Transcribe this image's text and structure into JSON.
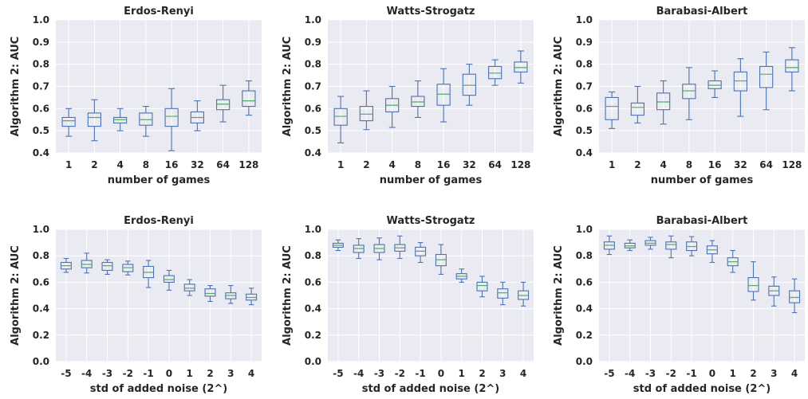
{
  "colors": {
    "plot_background": "#EAEAF2",
    "grid": "#FFFFFF",
    "box": "#4C72B0",
    "median": "#55A868",
    "text": "#262626"
  },
  "chart_data": [
    {
      "type": "box",
      "title": "Erdos-Renyi",
      "xlabel": "number of games",
      "ylabel": "Algorithm 2: AUC",
      "ylim": [
        0.4,
        1.0
      ],
      "yticks": [
        "0.4",
        "0.5",
        "0.6",
        "0.7",
        "0.8",
        "0.9",
        "1.0"
      ],
      "categories": [
        "1",
        "2",
        "4",
        "8",
        "16",
        "32",
        "64",
        "128"
      ],
      "boxes": [
        {
          "whislo": 0.475,
          "q1": 0.52,
          "med": 0.545,
          "q3": 0.56,
          "whishi": 0.6
        },
        {
          "whislo": 0.455,
          "q1": 0.52,
          "med": 0.56,
          "q3": 0.58,
          "whishi": 0.64
        },
        {
          "whislo": 0.5,
          "q1": 0.535,
          "med": 0.55,
          "q3": 0.56,
          "whishi": 0.6
        },
        {
          "whislo": 0.475,
          "q1": 0.525,
          "med": 0.55,
          "q3": 0.58,
          "whishi": 0.61
        },
        {
          "whislo": 0.41,
          "q1": 0.52,
          "med": 0.565,
          "q3": 0.6,
          "whishi": 0.69
        },
        {
          "whislo": 0.5,
          "q1": 0.535,
          "med": 0.56,
          "q3": 0.585,
          "whishi": 0.635
        },
        {
          "whislo": 0.54,
          "q1": 0.595,
          "med": 0.62,
          "q3": 0.64,
          "whishi": 0.705
        },
        {
          "whislo": 0.57,
          "q1": 0.61,
          "med": 0.635,
          "q3": 0.68,
          "whishi": 0.725
        }
      ]
    },
    {
      "type": "box",
      "title": "Watts-Strogatz",
      "xlabel": "number of games",
      "ylabel": "Algorithm 2: AUC",
      "ylim": [
        0.4,
        1.0
      ],
      "yticks": [
        "0.4",
        "0.5",
        "0.6",
        "0.7",
        "0.8",
        "0.9",
        "1.0"
      ],
      "categories": [
        "1",
        "2",
        "4",
        "8",
        "16",
        "32",
        "64",
        "128"
      ],
      "boxes": [
        {
          "whislo": 0.445,
          "q1": 0.525,
          "med": 0.565,
          "q3": 0.6,
          "whishi": 0.655
        },
        {
          "whislo": 0.505,
          "q1": 0.545,
          "med": 0.575,
          "q3": 0.61,
          "whishi": 0.68
        },
        {
          "whislo": 0.515,
          "q1": 0.585,
          "med": 0.615,
          "q3": 0.645,
          "whishi": 0.7
        },
        {
          "whislo": 0.56,
          "q1": 0.61,
          "med": 0.63,
          "q3": 0.655,
          "whishi": 0.725
        },
        {
          "whislo": 0.54,
          "q1": 0.615,
          "med": 0.665,
          "q3": 0.71,
          "whishi": 0.78
        },
        {
          "whislo": 0.615,
          "q1": 0.66,
          "med": 0.705,
          "q3": 0.755,
          "whishi": 0.8
        },
        {
          "whislo": 0.705,
          "q1": 0.735,
          "med": 0.76,
          "q3": 0.79,
          "whishi": 0.82
        },
        {
          "whislo": 0.715,
          "q1": 0.765,
          "med": 0.785,
          "q3": 0.81,
          "whishi": 0.86
        }
      ]
    },
    {
      "type": "box",
      "title": "Barabasi-Albert",
      "xlabel": "number of games",
      "ylabel": "Algorithm 2: AUC",
      "ylim": [
        0.4,
        1.0
      ],
      "yticks": [
        "0.4",
        "0.5",
        "0.6",
        "0.7",
        "0.8",
        "0.9",
        "1.0"
      ],
      "categories": [
        "1",
        "2",
        "4",
        "8",
        "16",
        "32",
        "64",
        "128"
      ],
      "boxes": [
        {
          "whislo": 0.51,
          "q1": 0.55,
          "med": 0.61,
          "q3": 0.65,
          "whishi": 0.675
        },
        {
          "whislo": 0.535,
          "q1": 0.57,
          "med": 0.605,
          "q3": 0.625,
          "whishi": 0.7
        },
        {
          "whislo": 0.53,
          "q1": 0.595,
          "med": 0.63,
          "q3": 0.67,
          "whishi": 0.725
        },
        {
          "whislo": 0.55,
          "q1": 0.645,
          "med": 0.68,
          "q3": 0.71,
          "whishi": 0.785
        },
        {
          "whislo": 0.65,
          "q1": 0.69,
          "med": 0.705,
          "q3": 0.725,
          "whishi": 0.77
        },
        {
          "whislo": 0.565,
          "q1": 0.68,
          "med": 0.725,
          "q3": 0.765,
          "whishi": 0.825
        },
        {
          "whislo": 0.595,
          "q1": 0.695,
          "med": 0.755,
          "q3": 0.79,
          "whishi": 0.855
        },
        {
          "whislo": 0.68,
          "q1": 0.765,
          "med": 0.785,
          "q3": 0.82,
          "whishi": 0.875
        }
      ]
    },
    {
      "type": "box",
      "title": "Erdos-Renyi",
      "xlabel": "std of added noise (2^)",
      "ylabel": "Algorithm 2: AUC",
      "ylim": [
        0.0,
        1.0
      ],
      "yticks": [
        "0.0",
        "0.2",
        "0.4",
        "0.6",
        "0.8",
        "1.0"
      ],
      "categories": [
        "-5",
        "-4",
        "-3",
        "-2",
        "-1",
        "0",
        "1",
        "2",
        "3",
        "4"
      ],
      "boxes": [
        {
          "whislo": 0.675,
          "q1": 0.7,
          "med": 0.725,
          "q3": 0.75,
          "whishi": 0.78
        },
        {
          "whislo": 0.67,
          "q1": 0.71,
          "med": 0.735,
          "q3": 0.765,
          "whishi": 0.82
        },
        {
          "whislo": 0.66,
          "q1": 0.69,
          "med": 0.725,
          "q3": 0.75,
          "whishi": 0.77
        },
        {
          "whislo": 0.655,
          "q1": 0.68,
          "med": 0.71,
          "q3": 0.735,
          "whishi": 0.76
        },
        {
          "whislo": 0.56,
          "q1": 0.635,
          "med": 0.675,
          "q3": 0.72,
          "whishi": 0.765
        },
        {
          "whislo": 0.54,
          "q1": 0.6,
          "med": 0.62,
          "q3": 0.65,
          "whishi": 0.69
        },
        {
          "whislo": 0.5,
          "q1": 0.535,
          "med": 0.555,
          "q3": 0.585,
          "whishi": 0.62
        },
        {
          "whislo": 0.455,
          "q1": 0.495,
          "med": 0.515,
          "q3": 0.55,
          "whishi": 0.575
        },
        {
          "whislo": 0.44,
          "q1": 0.475,
          "med": 0.5,
          "q3": 0.52,
          "whishi": 0.575
        },
        {
          "whislo": 0.43,
          "q1": 0.465,
          "med": 0.485,
          "q3": 0.51,
          "whishi": 0.555
        }
      ]
    },
    {
      "type": "box",
      "title": "Watts-Strogatz",
      "xlabel": "std of added noise (2^)",
      "ylabel": "Algorithm 2: AUC",
      "ylim": [
        0.0,
        1.0
      ],
      "yticks": [
        "0.0",
        "0.2",
        "0.4",
        "0.6",
        "0.8",
        "1.0"
      ],
      "categories": [
        "-5",
        "-4",
        "-3",
        "-2",
        "-1",
        "0",
        "1",
        "2",
        "3",
        "4"
      ],
      "boxes": [
        {
          "whislo": 0.84,
          "q1": 0.865,
          "med": 0.88,
          "q3": 0.895,
          "whishi": 0.92
        },
        {
          "whislo": 0.78,
          "q1": 0.825,
          "med": 0.855,
          "q3": 0.88,
          "whishi": 0.93
        },
        {
          "whislo": 0.77,
          "q1": 0.825,
          "med": 0.855,
          "q3": 0.885,
          "whishi": 0.935
        },
        {
          "whislo": 0.78,
          "q1": 0.835,
          "med": 0.86,
          "q3": 0.885,
          "whishi": 0.95
        },
        {
          "whislo": 0.75,
          "q1": 0.8,
          "med": 0.835,
          "q3": 0.865,
          "whishi": 0.9
        },
        {
          "whislo": 0.66,
          "q1": 0.725,
          "med": 0.77,
          "q3": 0.81,
          "whishi": 0.885
        },
        {
          "whislo": 0.6,
          "q1": 0.625,
          "med": 0.645,
          "q3": 0.665,
          "whishi": 0.7
        },
        {
          "whislo": 0.49,
          "q1": 0.535,
          "med": 0.575,
          "q3": 0.6,
          "whishi": 0.645
        },
        {
          "whislo": 0.43,
          "q1": 0.48,
          "med": 0.52,
          "q3": 0.55,
          "whishi": 0.6
        },
        {
          "whislo": 0.42,
          "q1": 0.47,
          "med": 0.5,
          "q3": 0.535,
          "whishi": 0.6
        }
      ]
    },
    {
      "type": "box",
      "title": "Barabasi-Albert",
      "xlabel": "std of added noise (2^)",
      "ylabel": "Algorithm 2: AUC",
      "ylim": [
        0.0,
        1.0
      ],
      "yticks": [
        "0.0",
        "0.2",
        "0.4",
        "0.6",
        "0.8",
        "1.0"
      ],
      "categories": [
        "-5",
        "-4",
        "-3",
        "-2",
        "-1",
        "0",
        "1",
        "2",
        "3",
        "4"
      ],
      "boxes": [
        {
          "whislo": 0.81,
          "q1": 0.85,
          "med": 0.88,
          "q3": 0.905,
          "whishi": 0.95
        },
        {
          "whislo": 0.84,
          "q1": 0.86,
          "med": 0.875,
          "q3": 0.895,
          "whishi": 0.92
        },
        {
          "whislo": 0.85,
          "q1": 0.88,
          "med": 0.895,
          "q3": 0.915,
          "whishi": 0.94
        },
        {
          "whislo": 0.785,
          "q1": 0.85,
          "med": 0.885,
          "q3": 0.905,
          "whishi": 0.95
        },
        {
          "whislo": 0.8,
          "q1": 0.84,
          "med": 0.87,
          "q3": 0.905,
          "whishi": 0.945
        },
        {
          "whislo": 0.75,
          "q1": 0.815,
          "med": 0.845,
          "q3": 0.875,
          "whishi": 0.915
        },
        {
          "whislo": 0.675,
          "q1": 0.725,
          "med": 0.755,
          "q3": 0.785,
          "whishi": 0.84
        },
        {
          "whislo": 0.465,
          "q1": 0.53,
          "med": 0.575,
          "q3": 0.635,
          "whishi": 0.755
        },
        {
          "whislo": 0.42,
          "q1": 0.5,
          "med": 0.535,
          "q3": 0.57,
          "whishi": 0.64
        },
        {
          "whislo": 0.37,
          "q1": 0.445,
          "med": 0.485,
          "q3": 0.535,
          "whishi": 0.625
        }
      ]
    }
  ]
}
